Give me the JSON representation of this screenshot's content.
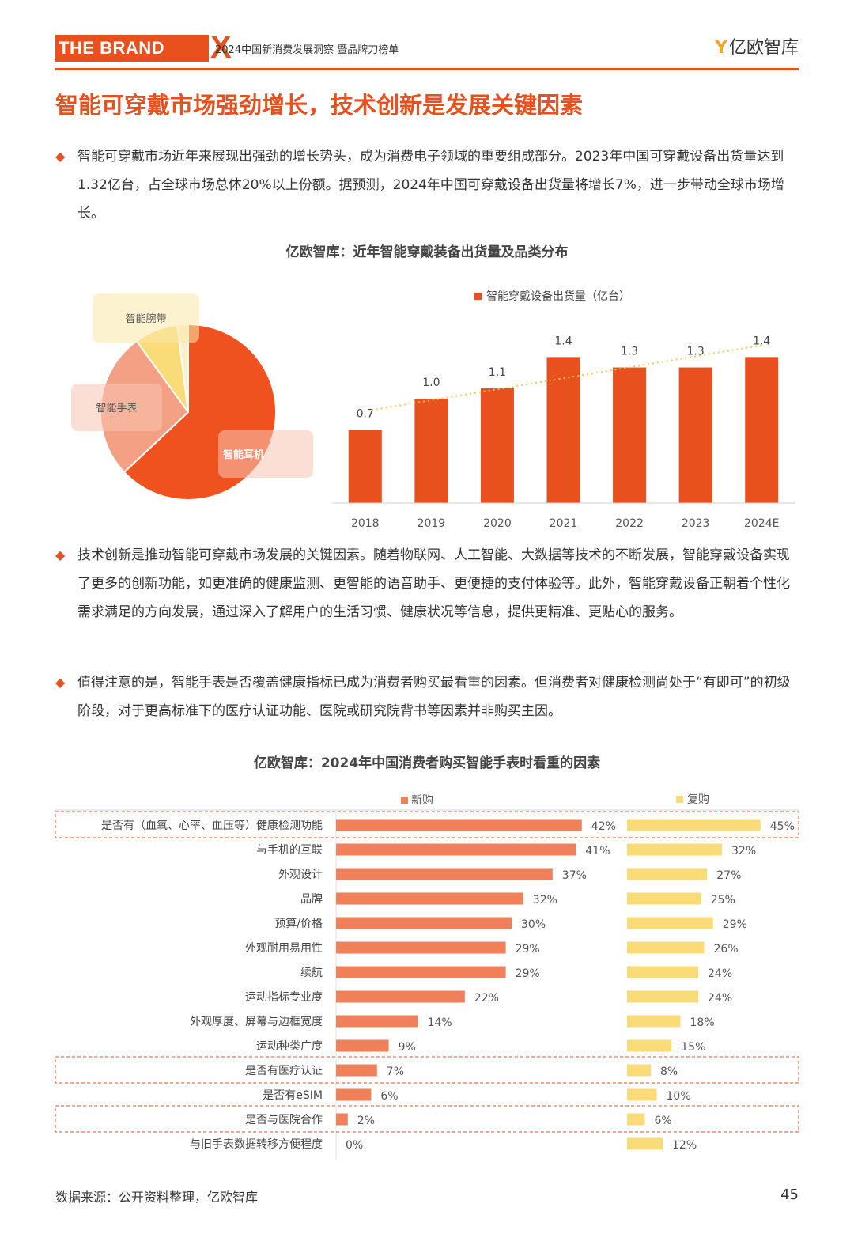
{
  "header": {
    "brand": "THE BRAND",
    "brand_x": "X",
    "subtitle": "2024中国新消费发展洞察 暨品牌刀榜单",
    "logo_mark": "Y",
    "logo_text": "亿欧智库"
  },
  "page_title": "智能可穿戴市场强劲增长，技术创新是发展关键因素",
  "paragraphs": [
    "智能可穿戴市场近年来展现出强劲的增长势头，成为消费电子领域的重要组成部分。2023年中国可穿戴设备出货量达到1.32亿台，占全球市场总体20%以上份额。据预测，2024年中国可穿戴设备出货量将增长7%，进一步带动全球市场增长。",
    "技术创新是推动智能可穿戴市场发展的关键因素。随着物联网、人工智能、大数据等技术的不断发展，智能穿戴设备实现了更多的创新功能，如更准确的健康监测、更智能的语音助手、更便捷的支付体验等。此外，智能穿戴设备正朝着个性化需求满足的方向发展，通过深入了解用户的生活习惯、健康状况等信息，提供更精准、更贴心的服务。",
    "值得注意的是，智能手表是否覆盖健康指标已成为消费者购买最看重的因素。但消费者对健康检测尚处于“有即可”的初级阶段，对于更高标准下的医疗认证功能、医院或研究院背书等因素并非购买主因。"
  ],
  "bullet_glyph": "◆",
  "colors": {
    "accent": "#e8501e",
    "bar_new": "#f0805a",
    "bar_repeat": "#f9dc78",
    "pie_earphone": "#f0521f",
    "pie_watch": "#f4a084",
    "pie_band": "#f9dc78",
    "pie_other": "#fbf0c7"
  },
  "chart_data": [
    {
      "type": "pie",
      "title": "亿欧智库：近年智能穿戴装备出货量及品类分布",
      "slices": [
        {
          "label": "智能耳机",
          "value": 63
        },
        {
          "label": "智能手表",
          "value": 27
        },
        {
          "label": "智能腕带",
          "value": 8
        },
        {
          "label": "",
          "value": 2
        }
      ]
    },
    {
      "type": "bar",
      "legend": "智能穿戴设备出货量（亿台）",
      "categories": [
        "2018",
        "2019",
        "2020",
        "2021",
        "2022",
        "2023",
        "2024E"
      ],
      "values": [
        0.7,
        1.0,
        1.1,
        1.4,
        1.3,
        1.3,
        1.4
      ],
      "value_labels": [
        "0.7",
        "1.0",
        "1.1",
        "1.4",
        "1.3",
        "1.3",
        "1.4"
      ],
      "ylim": [
        0,
        1.6
      ],
      "trendline": true
    },
    {
      "type": "bar",
      "orientation": "horizontal",
      "title": "亿欧智库：2024年中国消费者购买智能手表时看重的因素",
      "categories": [
        "是否有（血氧、心率、血压等）健康检测功能",
        "与手机的互联",
        "外观设计",
        "品牌",
        "预算/价格",
        "外观耐用易用性",
        "续航",
        "运动指标专业度",
        "外观厚度、屏幕与边框宽度",
        "运动种类广度",
        "是否有医疗认证",
        "是否有eSIM",
        "是否与医院合作",
        "与旧手表数据转移方便程度"
      ],
      "series": [
        {
          "name": "新购",
          "values": [
            42,
            41,
            37,
            32,
            30,
            29,
            29,
            22,
            14,
            9,
            7,
            6,
            2,
            0
          ]
        },
        {
          "name": "复购",
          "values": [
            45,
            32,
            27,
            25,
            29,
            26,
            24,
            24,
            18,
            15,
            8,
            10,
            6,
            12
          ]
        }
      ],
      "unit": "%",
      "highlighted_rows": [
        0,
        10,
        12
      ]
    }
  ],
  "footer": {
    "source": "数据来源：公开资料整理，亿欧智库",
    "page_number": "45"
  }
}
